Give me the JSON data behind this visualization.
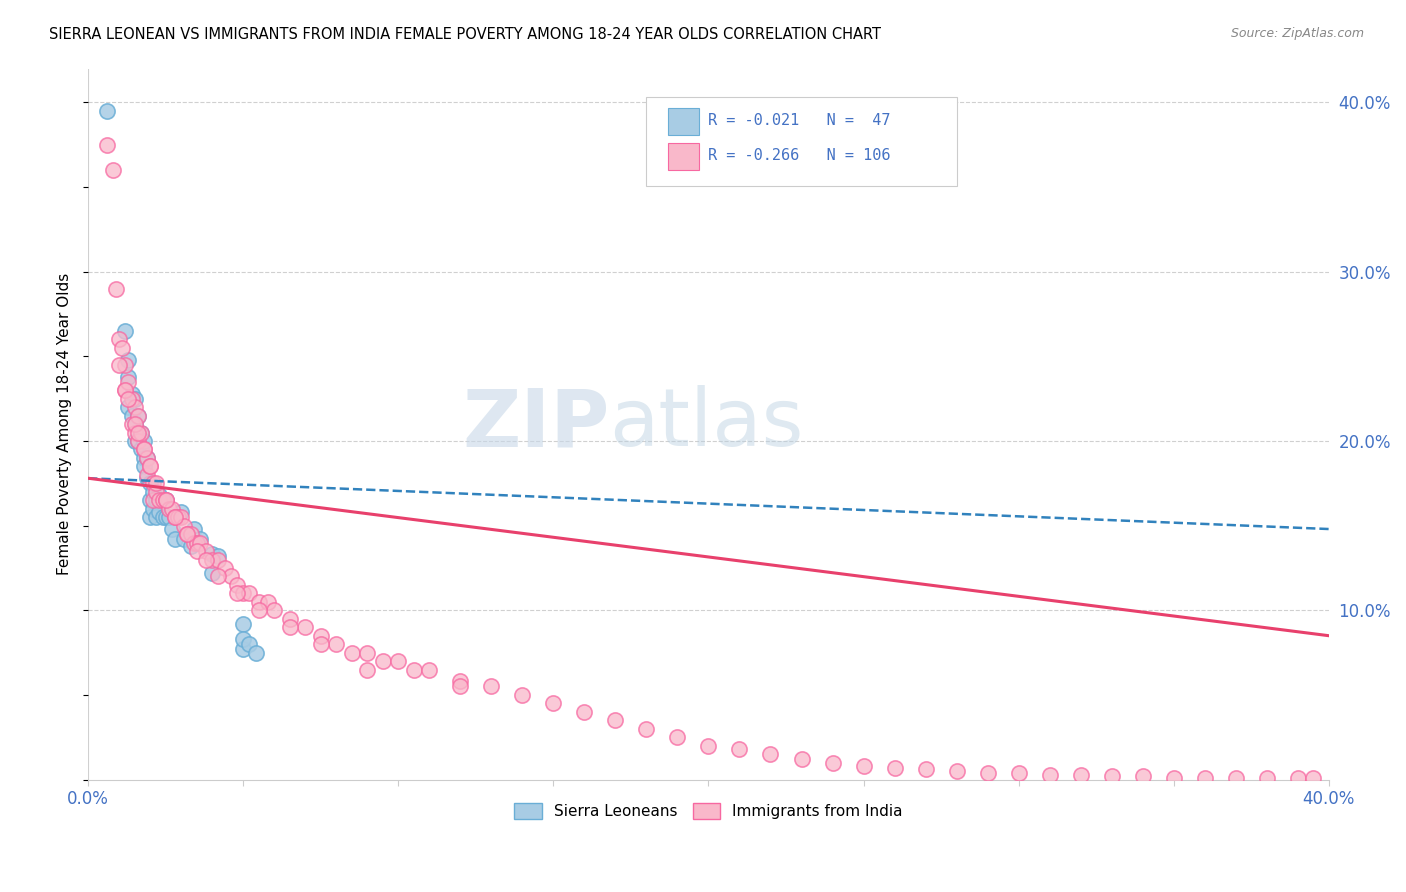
{
  "title": "SIERRA LEONEAN VS IMMIGRANTS FROM INDIA FEMALE POVERTY AMONG 18-24 YEAR OLDS CORRELATION CHART",
  "source": "Source: ZipAtlas.com",
  "ylabel": "Female Poverty Among 18-24 Year Olds",
  "xlim": [
    0.0,
    0.4
  ],
  "ylim": [
    0.0,
    0.42
  ],
  "blue_color": "#a8cce4",
  "blue_edge_color": "#6aaed6",
  "pink_color": "#f9b8ca",
  "pink_edge_color": "#f768a1",
  "blue_line_color": "#3182bd",
  "pink_line_color": "#e8406c",
  "watermark_zip": "ZIP",
  "watermark_atlas": "atlas",
  "legend_text": "R = -0.021   N =  47\nR = -0.266   N = 106",
  "blue_trend_x": [
    0.0,
    0.4
  ],
  "blue_trend_y": [
    0.178,
    0.148
  ],
  "pink_trend_x": [
    0.0,
    0.4
  ],
  "pink_trend_y": [
    0.178,
    0.085
  ],
  "blue_x": [
    0.006,
    0.012,
    0.013,
    0.013,
    0.014,
    0.014,
    0.015,
    0.015,
    0.016,
    0.016,
    0.016,
    0.017,
    0.017,
    0.018,
    0.018,
    0.018,
    0.019,
    0.019,
    0.019,
    0.02,
    0.02,
    0.02,
    0.021,
    0.021,
    0.022,
    0.022,
    0.022,
    0.023,
    0.023,
    0.024,
    0.024,
    0.025,
    0.025,
    0.026,
    0.027,
    0.028,
    0.029,
    0.03,
    0.031,
    0.033,
    0.034,
    0.036,
    0.04,
    0.04,
    0.042,
    0.05,
    0.05
  ],
  "blue_y": [
    0.395,
    0.265,
    0.245,
    0.235,
    0.23,
    0.22,
    0.225,
    0.215,
    0.22,
    0.21,
    0.2,
    0.205,
    0.195,
    0.2,
    0.19,
    0.185,
    0.19,
    0.18,
    0.17,
    0.175,
    0.165,
    0.155,
    0.17,
    0.16,
    0.165,
    0.155,
    0.145,
    0.17,
    0.16,
    0.155,
    0.14,
    0.165,
    0.155,
    0.155,
    0.145,
    0.14,
    0.145,
    0.155,
    0.14,
    0.135,
    0.145,
    0.14,
    0.13,
    0.12,
    0.13,
    0.09,
    0.075
  ],
  "pink_x": [
    0.006,
    0.008,
    0.009,
    0.01,
    0.011,
    0.012,
    0.012,
    0.013,
    0.013,
    0.014,
    0.014,
    0.015,
    0.015,
    0.016,
    0.016,
    0.017,
    0.017,
    0.018,
    0.019,
    0.019,
    0.02,
    0.02,
    0.021,
    0.022,
    0.023,
    0.024,
    0.025,
    0.025,
    0.026,
    0.027,
    0.028,
    0.029,
    0.03,
    0.031,
    0.032,
    0.033,
    0.034,
    0.035,
    0.036,
    0.038,
    0.039,
    0.04,
    0.042,
    0.043,
    0.044,
    0.046,
    0.047,
    0.05,
    0.052,
    0.054,
    0.056,
    0.058,
    0.06,
    0.062,
    0.065,
    0.068,
    0.07,
    0.072,
    0.075,
    0.08,
    0.085,
    0.09,
    0.095,
    0.1,
    0.105,
    0.11,
    0.115,
    0.12,
    0.13,
    0.135,
    0.14,
    0.145,
    0.15,
    0.155,
    0.16,
    0.165,
    0.17,
    0.175,
    0.18,
    0.19,
    0.2,
    0.21,
    0.215,
    0.22,
    0.23,
    0.235,
    0.24,
    0.25,
    0.26,
    0.27,
    0.28,
    0.29,
    0.3,
    0.31,
    0.32,
    0.33,
    0.34,
    0.35,
    0.36,
    0.37,
    0.38,
    0.39,
    0.395,
    0.398,
    0.399,
    0.4
  ],
  "pink_y": [
    0.375,
    0.36,
    0.29,
    0.26,
    0.255,
    0.245,
    0.23,
    0.235,
    0.22,
    0.225,
    0.21,
    0.22,
    0.205,
    0.215,
    0.2,
    0.205,
    0.19,
    0.195,
    0.19,
    0.18,
    0.185,
    0.175,
    0.175,
    0.17,
    0.165,
    0.165,
    0.165,
    0.155,
    0.16,
    0.16,
    0.155,
    0.155,
    0.155,
    0.15,
    0.145,
    0.145,
    0.14,
    0.14,
    0.14,
    0.135,
    0.13,
    0.13,
    0.13,
    0.125,
    0.12,
    0.12,
    0.115,
    0.11,
    0.11,
    0.105,
    0.105,
    0.1,
    0.1,
    0.095,
    0.095,
    0.09,
    0.09,
    0.085,
    0.085,
    0.08,
    0.08,
    0.075,
    0.075,
    0.07,
    0.07,
    0.065,
    0.065,
    0.06,
    0.055,
    0.055,
    0.05,
    0.05,
    0.045,
    0.045,
    0.04,
    0.04,
    0.035,
    0.035,
    0.03,
    0.025,
    0.025,
    0.02,
    0.02,
    0.015,
    0.015,
    0.01,
    0.01,
    0.008,
    0.006,
    0.005,
    0.005,
    0.004,
    0.003,
    0.003,
    0.002,
    0.001,
    0.001,
    0.001,
    0.001,
    0.001,
    0.001,
    0.001,
    0.001,
    0.001,
    0.001,
    0.001
  ]
}
